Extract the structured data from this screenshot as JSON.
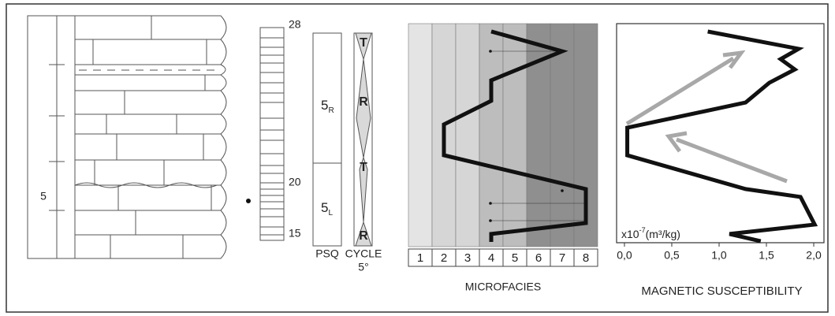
{
  "log": {
    "bed_label": "5",
    "levels": [
      28,
      20,
      15
    ],
    "psq": {
      "label": "PSQ",
      "units": [
        {
          "main": "5",
          "sub": "R"
        },
        {
          "main": "5",
          "sub": "L"
        }
      ]
    },
    "cycle": {
      "label": "CYCLE",
      "order": "5°",
      "phases": [
        "T",
        "R",
        "T",
        "R"
      ]
    }
  },
  "chart_data": [
    {
      "type": "line",
      "xlabel": "MICROFACIES",
      "xlim": [
        0.5,
        8.5
      ],
      "xticks": [
        1,
        2,
        3,
        4,
        5,
        6,
        7,
        8
      ],
      "band_colors": [
        "#e4e4e4",
        "#d6d6d6",
        "#d6d6d6",
        "#bdbdbd",
        "#bdbdbd",
        "#8f8f8f",
        "#8f8f8f",
        "#8f8f8f"
      ],
      "ylim": [
        0,
        100
      ],
      "color": "#111111",
      "x": [
        4,
        7,
        4,
        4,
        2,
        2,
        8,
        8,
        4,
        4
      ],
      "values": [
        3.5,
        12.4,
        25.4,
        34.6,
        45.2,
        59.0,
        74.2,
        89.4,
        94.3,
        97.9
      ]
    },
    {
      "type": "line",
      "xlabel": "MAGNETIC SUSCEPTIBILITY",
      "unit_prefix": "x10",
      "unit_exponent": "-7",
      "unit": "(m³/kg)",
      "xlim": [
        -0.083,
        2.108
      ],
      "xticks": [
        {
          "value": 0,
          "label": "0,0"
        },
        {
          "value": 0.5,
          "label": "0,5"
        },
        {
          "value": 1,
          "label": "1,0"
        },
        {
          "value": 1.5,
          "label": "1,5"
        },
        {
          "value": 2,
          "label": "2,0"
        }
      ],
      "ylim": [
        0,
        100
      ],
      "color": "#111111",
      "x": [
        0.88,
        1.84,
        1.65,
        1.8,
        1.53,
        1.28,
        0.03,
        0.03,
        1.28,
        1.86,
        2.01,
        1.11,
        1.44
      ],
      "values": [
        3.6,
        11.5,
        16.2,
        20.9,
        27.0,
        36.0,
        47.5,
        60.1,
        75.5,
        79.1,
        91.7,
        96.0,
        99.3
      ]
    }
  ]
}
